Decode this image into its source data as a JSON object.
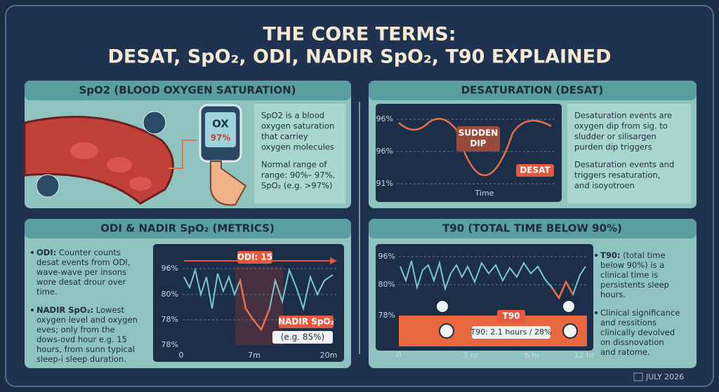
{
  "title": [
    "THE CORE TERMS:",
    "DESAT, SpO₂, ODI, NADIR SpO₂, T90 EXPLAINED"
  ],
  "panels": [
    {
      "heading": "SpO2 (BLOOD OXYGEN SATURATION)",
      "device": [
        "OX",
        "97%"
      ],
      "paragraphs": [
        [
          "SpO2 is a blood",
          "oxygen saturation",
          "that carriey",
          "oxygen molecules"
        ],
        [
          "Normal range of",
          "range: 90%– 97%,",
          "SpO₂ (e.g. >97%)"
        ]
      ]
    },
    {
      "heading": "DESATURATION (DESAT)",
      "chart": {
        "yticks": [
          "96%",
          "96%",
          "91%"
        ],
        "xlabel": "Time",
        "annotations": [
          "SUDDEN",
          "DIP",
          "DESAT"
        ]
      },
      "paragraphs": [
        [
          "Desaturation events are",
          "oxygen dip from sig. to",
          "sludder or silisargen",
          "purden dip triggers"
        ],
        [
          "Desaturation events and",
          "triggers resaturation,",
          "and isoyotroen"
        ]
      ]
    },
    {
      "heading": "ODI & NADIR SpO₂ (METRICS)",
      "chart": {
        "yticks": [
          "96%",
          "80%",
          "78%",
          "78%"
        ],
        "xticks": [
          "0",
          "7m",
          "20m"
        ],
        "annotations": [
          "ODI: 15",
          "NADIR SpO₂",
          "(e.g. 85%)"
        ]
      },
      "paragraphs": [
        {
          "label": "ODI:",
          "lines": [
            " Counter counts",
            "desat events from ODI,",
            "wave-wave per insons",
            "wore desat drour over",
            "time."
          ]
        },
        {
          "label": "NADIR SpO₂:",
          "lines": [
            " Lowest",
            "oxygen level and oxygen",
            "eves; only from the",
            "dows-ovd hour e.g. 15",
            "hours, from sunn typical",
            "sleep-i sleep duration."
          ]
        }
      ]
    },
    {
      "heading": "T90 (TOTAL TIME BELOW 90%)",
      "chart": {
        "yticks": [
          "96%",
          "80%",
          "78%"
        ],
        "xticks": [
          "0",
          "3 hr",
          "6 hr",
          "12 hr"
        ],
        "annotations": [
          "T90",
          "T90: 2.1 hours / 28%"
        ]
      },
      "paragraphs": [
        {
          "label": "T90:",
          "lines": [
            " (total time",
            "below 90%) is a",
            "clinical time is",
            "persistents sleep",
            "hours."
          ]
        },
        {
          "label": "",
          "lines": [
            "Clinical significance",
            "and ressitions",
            "clinically devolved",
            "on dissnovation",
            "and ratome."
          ]
        }
      ]
    }
  ],
  "footer": "JULY 2026"
}
